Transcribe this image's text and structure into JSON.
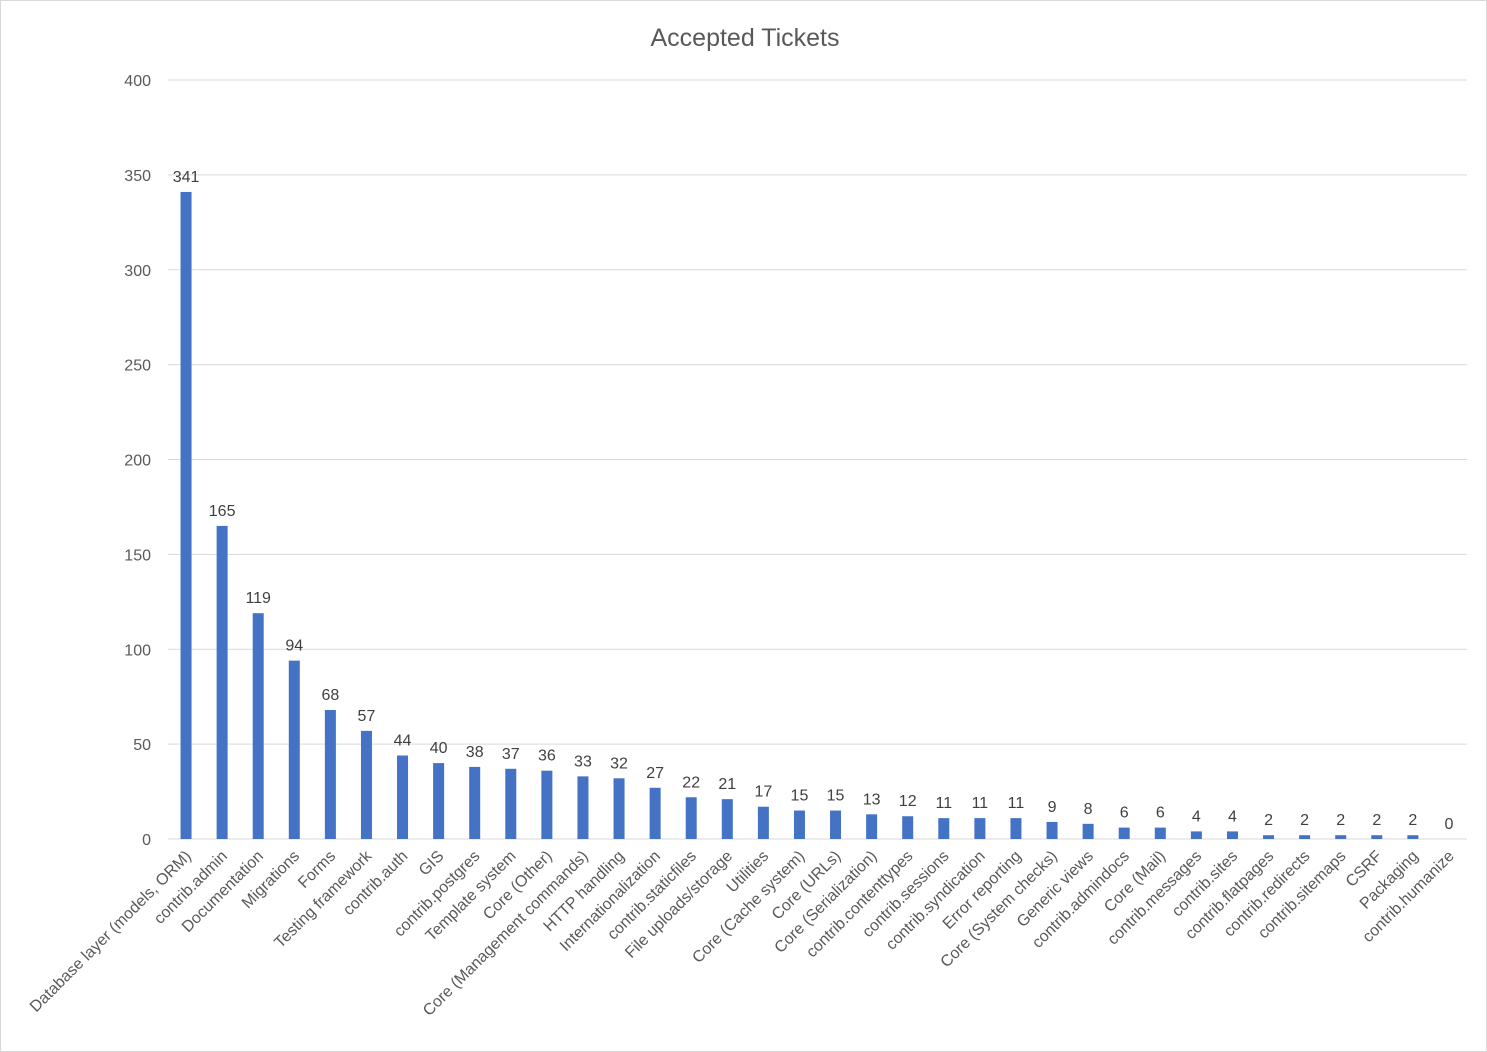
{
  "chart_data": {
    "type": "bar",
    "title": "Accepted Tickets",
    "xlabel": "",
    "ylabel": "",
    "ylim": [
      0,
      400
    ],
    "yticks": [
      0,
      50,
      100,
      150,
      200,
      250,
      300,
      350,
      400
    ],
    "grid": true,
    "legend": "none",
    "bar_color": "#4472c4",
    "categories": [
      "Database layer (models, ORM)",
      "contrib.admin",
      "Documentation",
      "Migrations",
      "Forms",
      "Testing framework",
      "contrib.auth",
      "GIS",
      "contrib.postgres",
      "Template system",
      "Core (Other)",
      "Core (Management commands)",
      "HTTP handling",
      "Internationalization",
      "contrib.staticfiles",
      "File uploads/storage",
      "Utilities",
      "Core (Cache system)",
      "Core (URLs)",
      "Core (Serialization)",
      "contrib.contenttypes",
      "contrib.sessions",
      "contrib.syndication",
      "Error reporting",
      "Core (System checks)",
      "Generic views",
      "contrib.admindocs",
      "Core (Mail)",
      "contrib.messages",
      "contrib.sites",
      "contrib.flatpages",
      "contrib.redirects",
      "contrib.sitemaps",
      "CSRF",
      "Packaging",
      "contrib.humanize"
    ],
    "values": [
      341,
      165,
      119,
      94,
      68,
      57,
      44,
      40,
      38,
      37,
      36,
      33,
      32,
      27,
      22,
      21,
      17,
      15,
      15,
      13,
      12,
      11,
      11,
      11,
      9,
      8,
      6,
      6,
      4,
      4,
      2,
      2,
      2,
      2,
      2,
      0
    ]
  }
}
